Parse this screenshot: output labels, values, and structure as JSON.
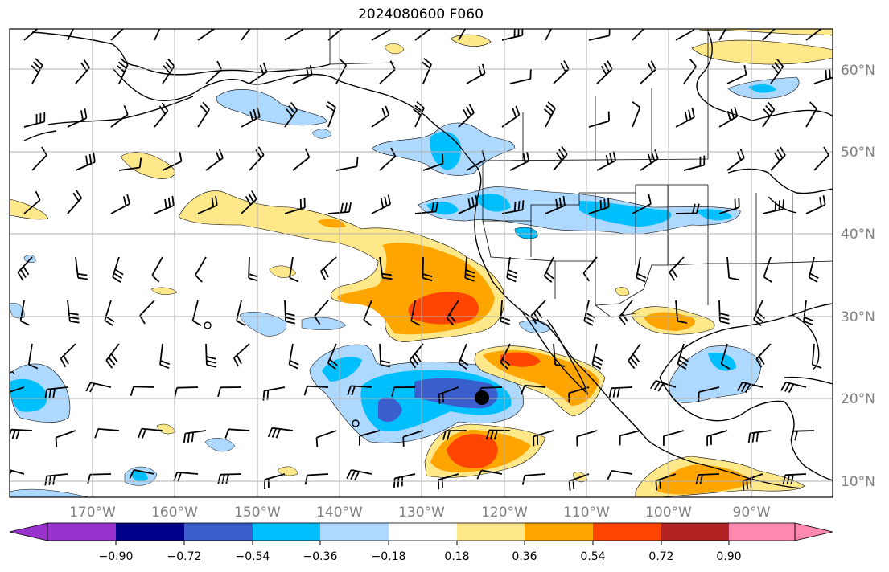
{
  "title": "2024080600 F060",
  "map": {
    "projection": "plate-carree",
    "lon_range": [
      -180,
      -80
    ],
    "lat_range": [
      8,
      65
    ],
    "gridline_color": "#b0b0b0",
    "gridlines": true
  },
  "latitude_labels": [
    "60°N",
    "50°N",
    "40°N",
    "30°N",
    "20°N",
    "10°N"
  ],
  "longitude_labels": [
    "170°W",
    "160°W",
    "150°W",
    "140°W",
    "130°W",
    "120°W",
    "110°W",
    "100°W",
    "90°W"
  ],
  "colorbar": {
    "ticks": [
      "−0.90",
      "−0.72",
      "−0.54",
      "−0.36",
      "−0.18",
      "0.18",
      "0.36",
      "0.54",
      "0.72",
      "0.90"
    ],
    "colors": [
      "#9932cc",
      "#00008b",
      "#3a5fcd",
      "#00bfff",
      "#add8ff",
      "#ffffff",
      "#ffe88a",
      "#ffa500",
      "#ff4500",
      "#b22222",
      "#ff88b0"
    ],
    "extend": "both"
  },
  "storm_marker": {
    "label": "black-dot",
    "lon": -122.5,
    "lat": 20.0,
    "color": "#000000"
  },
  "shading_colors": {
    "neg_light": "#add8ff",
    "neg_mid": "#00bfff",
    "neg_strong": "#3a5fcd",
    "neg_deep": "#4040d0",
    "pos_light": "#ffe88a",
    "pos_mid": "#ffa500",
    "pos_strong": "#ff4500"
  }
}
